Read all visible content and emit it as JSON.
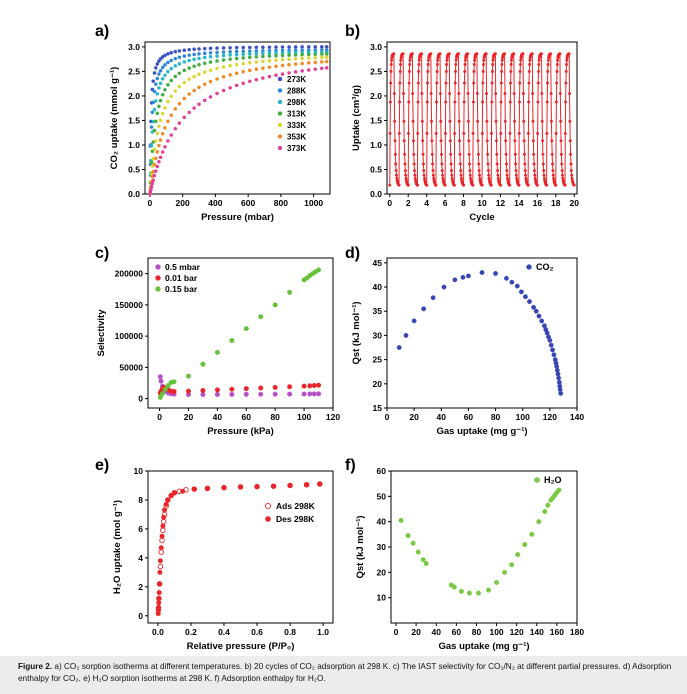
{
  "caption": {
    "label": "Figure 2.",
    "text": "a) CO₂ sorption isotherms at different temperatures. b) 20 cycles of CO₂ adsorption at 298 K. c) The IAST selectivity for CO₂/N₂ at different partial pressures. d) Adsorption enthalpy for CO₂. e) H₂O sorption isotherms at 298 K. f) Adsorption enthalpy for H₂O."
  },
  "chart_data": [
    {
      "panel": "a)",
      "type": "scatter",
      "xlabel": "Pressure (mbar)",
      "ylabel": "CO₂ uptake (mmol g⁻¹)",
      "xlim": [
        -30,
        1100
      ],
      "ylim": [
        0,
        3.1
      ],
      "xticks": [
        0,
        200,
        400,
        600,
        800,
        1000
      ],
      "yticks": [
        0.0,
        0.5,
        1.0,
        1.5,
        2.0,
        2.5,
        3.0
      ],
      "legend_position": "right",
      "series": [
        {
          "name": "273K",
          "color": "#3b4fc4",
          "qmax": 3.02,
          "b": 0.16
        },
        {
          "name": "288K",
          "color": "#2f86d9",
          "qmax": 2.97,
          "b": 0.085
        },
        {
          "name": "298K",
          "color": "#27b8c8",
          "qmax": 2.95,
          "b": 0.05
        },
        {
          "name": "313K",
          "color": "#3fae3f",
          "qmax": 2.95,
          "b": 0.028
        },
        {
          "name": "333K",
          "color": "#d8d835",
          "qmax": 2.95,
          "b": 0.016
        },
        {
          "name": "353K",
          "color": "#f08a24",
          "qmax": 2.98,
          "b": 0.009
        },
        {
          "name": "373K",
          "color": "#e0409a",
          "qmax": 3.05,
          "b": 0.005
        }
      ],
      "x_points": [
        0,
        3,
        6,
        10,
        15,
        20,
        28,
        36,
        45,
        55,
        65,
        78,
        92,
        110,
        130,
        155,
        180,
        210,
        240,
        270,
        300,
        335,
        370,
        410,
        450,
        490,
        530,
        570,
        610,
        650,
        690,
        730,
        770,
        810,
        850,
        890,
        930,
        970,
        1010,
        1050,
        1080
      ]
    },
    {
      "panel": "b)",
      "type": "line",
      "xlabel": "Cycle",
      "ylabel": "Uptake (cm³/g)",
      "xlim": [
        -0.3,
        20.3
      ],
      "ylim": [
        0,
        3.1
      ],
      "xticks": [
        0,
        2,
        4,
        6,
        8,
        10,
        12,
        14,
        16,
        18,
        20
      ],
      "yticks": [
        0.0,
        0.5,
        1.0,
        1.5,
        2.0,
        2.5,
        3.0
      ],
      "cycles": 20,
      "max_uptake": 2.86,
      "min_uptake": 0.18,
      "color": "#e8262a"
    },
    {
      "panel": "c)",
      "type": "scatter",
      "xlabel": "Pressure (kPa)",
      "ylabel": "Selectivity",
      "xlim": [
        -8,
        120
      ],
      "ylim": [
        -15000,
        225000
      ],
      "xticks": [
        0,
        20,
        40,
        60,
        80,
        100,
        120
      ],
      "yticks": [
        0,
        50000,
        100000,
        150000,
        200000
      ],
      "legend_position": "top-left",
      "series": [
        {
          "name": "0.5 mbar",
          "color": "#b550c8",
          "x": [
            0.5,
            1,
            2,
            3,
            4,
            6,
            8,
            10,
            20,
            30,
            40,
            50,
            60,
            70,
            80,
            90,
            100,
            104,
            107,
            110
          ],
          "y": [
            35000,
            28000,
            20000,
            15000,
            12000,
            9000,
            7800,
            7200,
            6500,
            6600,
            6700,
            6800,
            6900,
            7000,
            7100,
            7200,
            7400,
            7500,
            7600,
            7700
          ]
        },
        {
          "name": "0.01 bar",
          "color": "#e8262a",
          "x": [
            0.5,
            1,
            2,
            3,
            4,
            6,
            8,
            10,
            20,
            30,
            40,
            50,
            60,
            70,
            80,
            90,
            100,
            104,
            107,
            110
          ],
          "y": [
            9000,
            12000,
            16000,
            18000,
            17000,
            14000,
            12000,
            11500,
            12000,
            13000,
            14000,
            15000,
            16000,
            17000,
            18000,
            19000,
            20000,
            20500,
            21000,
            21500
          ]
        },
        {
          "name": "0.15 bar",
          "color": "#66c23a",
          "x": [
            0.5,
            2,
            4,
            6,
            8,
            10,
            20,
            30,
            40,
            50,
            60,
            70,
            80,
            90,
            100,
            102,
            104,
            106,
            108,
            110
          ],
          "y": [
            2000,
            8000,
            15000,
            21000,
            26000,
            27000,
            36000,
            55000,
            74000,
            93000,
            112000,
            131000,
            150000,
            170000,
            190000,
            193000,
            197000,
            200000,
            203000,
            206000
          ]
        }
      ]
    },
    {
      "panel": "d)",
      "type": "scatter",
      "xlabel": "Gas uptake (mg g⁻¹)",
      "ylabel": "Qst (kJ mol⁻¹)",
      "xlim": [
        0,
        140
      ],
      "ylim": [
        15,
        46
      ],
      "xticks": [
        0,
        20,
        40,
        60,
        80,
        100,
        120,
        140
      ],
      "yticks": [
        15,
        20,
        25,
        30,
        35,
        40,
        45
      ],
      "legend_position": "top-right",
      "series": [
        {
          "name": "CO₂",
          "color": "#3846b4",
          "x": [
            9,
            14,
            20,
            27,
            34,
            42,
            50,
            56,
            60,
            70,
            80,
            88,
            92,
            96,
            99,
            102,
            105,
            108,
            110,
            112,
            114,
            116,
            117,
            118,
            119,
            120,
            121,
            122,
            123,
            124,
            124.5,
            125,
            125.5,
            126,
            126.5,
            127,
            127.3,
            127.6,
            128
          ],
          "y": [
            27.5,
            30.0,
            33.0,
            35.5,
            37.8,
            40.0,
            41.5,
            42.0,
            42.3,
            43.0,
            42.8,
            41.8,
            41.0,
            40.2,
            39.0,
            38.0,
            37.0,
            35.8,
            35.0,
            34.0,
            33.0,
            32.0,
            31.2,
            30.5,
            29.7,
            29.0,
            28.0,
            27.0,
            26.0,
            25.0,
            24.3,
            23.6,
            22.8,
            22.0,
            21.2,
            20.3,
            19.5,
            18.8,
            18.0
          ]
        }
      ]
    },
    {
      "panel": "e)",
      "type": "scatter",
      "xlabel": "Relative pressure (P/P₀)",
      "ylabel": "H₂O uptake (mol g⁻¹)",
      "xlim": [
        -0.06,
        1.06
      ],
      "ylim": [
        -0.5,
        10
      ],
      "xticks": [
        0.0,
        0.2,
        0.4,
        0.6,
        0.8,
        1.0
      ],
      "yticks": [
        0,
        2,
        4,
        6,
        8,
        10
      ],
      "legend_position": "right",
      "series": [
        {
          "name": "Ads 298K",
          "color": "#e8262a",
          "filled": false,
          "x": [
            0.003,
            0.006,
            0.01,
            0.015,
            0.02,
            0.025,
            0.03,
            0.035,
            0.04,
            0.05,
            0.06,
            0.08,
            0.1,
            0.13,
            0.17,
            0.22,
            0.3,
            0.4,
            0.5,
            0.6,
            0.7,
            0.8,
            0.9,
            0.98
          ],
          "y": [
            0.5,
            1.2,
            2.2,
            3.4,
            4.4,
            5.2,
            5.9,
            6.5,
            7.0,
            7.6,
            8.0,
            8.3,
            8.5,
            8.6,
            8.7,
            8.75,
            8.8,
            8.85,
            8.9,
            8.92,
            8.95,
            9.0,
            9.05,
            9.1
          ]
        },
        {
          "name": "Des 298K",
          "color": "#e8262a",
          "filled": true,
          "x": [
            0.98,
            0.9,
            0.8,
            0.7,
            0.6,
            0.5,
            0.4,
            0.3,
            0.22,
            0.15,
            0.1,
            0.08,
            0.06,
            0.05,
            0.04,
            0.035,
            0.03,
            0.025,
            0.02,
            0.015,
            0.012,
            0.01,
            0.008,
            0.006,
            0.005,
            0.004,
            0.003,
            0.002
          ],
          "y": [
            9.1,
            9.05,
            9.0,
            8.95,
            8.92,
            8.9,
            8.85,
            8.8,
            8.75,
            8.6,
            8.5,
            8.3,
            8.0,
            7.7,
            7.3,
            6.8,
            6.2,
            5.5,
            4.7,
            3.8,
            3.0,
            2.2,
            1.6,
            1.2,
            0.9,
            0.6,
            0.35,
            0.15
          ]
        }
      ]
    },
    {
      "panel": "f)",
      "type": "scatter",
      "xlabel": "Gas uptake (mg g⁻¹)",
      "ylabel": "Qst (kJ mol⁻¹)",
      "xlim": [
        -5,
        180
      ],
      "ylim": [
        0,
        60
      ],
      "xticks": [
        0,
        20,
        40,
        60,
        80,
        100,
        120,
        140,
        160,
        180
      ],
      "yticks": [
        10,
        20,
        30,
        40,
        50,
        60
      ],
      "legend_position": "top-right",
      "series": [
        {
          "name": "H₂O",
          "color": "#7ac943",
          "x": [
            5,
            12,
            17,
            22,
            27,
            30,
            55,
            58,
            65,
            73,
            82,
            92,
            100,
            108,
            115,
            121,
            128,
            135,
            142,
            148,
            151,
            154,
            156,
            158,
            160,
            162
          ],
          "y": [
            40.5,
            34.5,
            31.5,
            28.0,
            25.0,
            23.5,
            15.0,
            14.2,
            12.5,
            11.8,
            11.8,
            13.0,
            16.0,
            20.0,
            23.0,
            27.0,
            31.0,
            35.0,
            40.0,
            44.0,
            46.5,
            48.5,
            49.5,
            50.5,
            51.5,
            52.5
          ]
        }
      ]
    }
  ]
}
